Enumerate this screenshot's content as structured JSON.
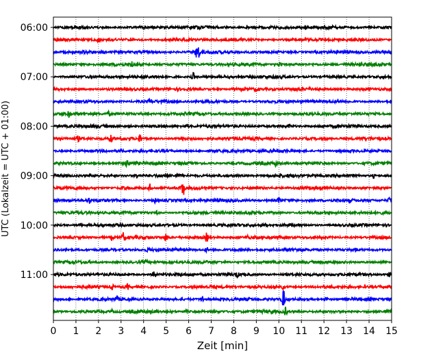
{
  "chart_data": {
    "type": "line",
    "title": "",
    "xlabel": "Zeit  [min]",
    "ylabel": "UTC (Lokalzeit = UTC + 01:00)",
    "xlim": [
      0,
      15
    ],
    "x_ticks": [
      "0",
      "1",
      "2",
      "3",
      "4",
      "5",
      "6",
      "7",
      "8",
      "9",
      "10",
      "11",
      "12",
      "13",
      "14",
      "15"
    ],
    "y_ticks": [
      "06:00",
      "07:00",
      "08:00",
      "09:00",
      "10:00",
      "11:00"
    ],
    "grid": "vertical dotted at each minute",
    "trace_colors": [
      "#000000",
      "#ff0000",
      "#0000ff",
      "#008000"
    ],
    "traces_per_hour": 4,
    "trace_interval_min": 15,
    "series": [
      {
        "start": "06:00",
        "color": "#000000",
        "events": [
          [
            8.55,
            0.35
          ],
          [
            11.15,
            0.4
          ]
        ]
      },
      {
        "start": "06:15",
        "color": "#ff0000",
        "events": [
          [
            2.0,
            0.2
          ]
        ]
      },
      {
        "start": "06:30",
        "color": "#0000ff",
        "events": [
          [
            6.35,
            1.0
          ],
          [
            6.45,
            0.6
          ]
        ]
      },
      {
        "start": "06:45",
        "color": "#008000",
        "events": [
          [
            3.5,
            0.35
          ],
          [
            10.05,
            0.3
          ],
          [
            14.2,
            0.2
          ]
        ]
      },
      {
        "start": "07:00",
        "color": "#000000",
        "events": [
          [
            6.2,
            0.5
          ],
          [
            3.0,
            0.2
          ]
        ]
      },
      {
        "start": "07:15",
        "color": "#ff0000",
        "events": [
          [
            9.0,
            0.25
          ]
        ]
      },
      {
        "start": "07:30",
        "color": "#0000ff",
        "events": [
          [
            4.3,
            0.25
          ]
        ]
      },
      {
        "start": "07:45",
        "color": "#008000",
        "events": [
          [
            0.7,
            0.35
          ],
          [
            2.45,
            0.25
          ]
        ]
      },
      {
        "start": "08:00",
        "color": "#000000",
        "events": [
          [
            5.9,
            0.3
          ],
          [
            10.45,
            0.25
          ]
        ]
      },
      {
        "start": "08:15",
        "color": "#ff0000",
        "events": [
          [
            3.85,
            0.5
          ],
          [
            1.1,
            0.3
          ],
          [
            2.55,
            0.35
          ]
        ]
      },
      {
        "start": "08:30",
        "color": "#0000ff",
        "events": [
          [
            3.0,
            0.2
          ]
        ]
      },
      {
        "start": "08:45",
        "color": "#008000",
        "events": [
          [
            3.25,
            0.45
          ],
          [
            9.85,
            0.35
          ],
          [
            4.5,
            0.3
          ]
        ]
      },
      {
        "start": "09:00",
        "color": "#000000",
        "events": [
          [
            3.7,
            0.3
          ],
          [
            14.2,
            0.25
          ]
        ]
      },
      {
        "start": "09:15",
        "color": "#ff0000",
        "events": [
          [
            5.75,
            1.0
          ],
          [
            4.3,
            0.5
          ],
          [
            3.1,
            0.3
          ]
        ]
      },
      {
        "start": "09:30",
        "color": "#0000ff",
        "events": [
          [
            10.0,
            0.45
          ],
          [
            4.5,
            0.3
          ],
          [
            1.6,
            0.3
          ],
          [
            14.9,
            0.3
          ]
        ]
      },
      {
        "start": "09:45",
        "color": "#008000",
        "events": [
          [
            4.6,
            0.2
          ]
        ]
      },
      {
        "start": "10:00",
        "color": "#000000",
        "events": [
          [
            1.2,
            0.25
          ],
          [
            9.4,
            0.2
          ]
        ]
      },
      {
        "start": "10:15",
        "color": "#ff0000",
        "events": [
          [
            3.1,
            0.55
          ],
          [
            5.0,
            0.5
          ],
          [
            6.8,
            0.55
          ],
          [
            2.6,
            0.35
          ],
          [
            8.6,
            0.3
          ]
        ]
      },
      {
        "start": "10:30",
        "color": "#0000ff",
        "events": [
          [
            6.8,
            0.3
          ],
          [
            4.2,
            0.25
          ],
          [
            13.4,
            0.25
          ]
        ]
      },
      {
        "start": "10:45",
        "color": "#008000",
        "events": [
          [
            4.1,
            0.25
          ],
          [
            8.8,
            0.2
          ]
        ]
      },
      {
        "start": "11:00",
        "color": "#000000",
        "events": [
          [
            4.45,
            0.5
          ],
          [
            8.15,
            0.3
          ],
          [
            14.9,
            0.25
          ]
        ]
      },
      {
        "start": "11:15",
        "color": "#ff0000",
        "events": [
          [
            2.6,
            0.35
          ],
          [
            3.3,
            0.3
          ],
          [
            10.2,
            0.3
          ]
        ]
      },
      {
        "start": "11:30",
        "color": "#0000ff",
        "events": [
          [
            10.2,
            1.4
          ],
          [
            6.6,
            0.45
          ],
          [
            2.8,
            0.3
          ],
          [
            12.1,
            0.25
          ]
        ]
      },
      {
        "start": "11:45",
        "color": "#008000",
        "events": [
          [
            10.3,
            0.5
          ],
          [
            2.6,
            0.2
          ],
          [
            5.9,
            0.2
          ]
        ]
      }
    ]
  }
}
